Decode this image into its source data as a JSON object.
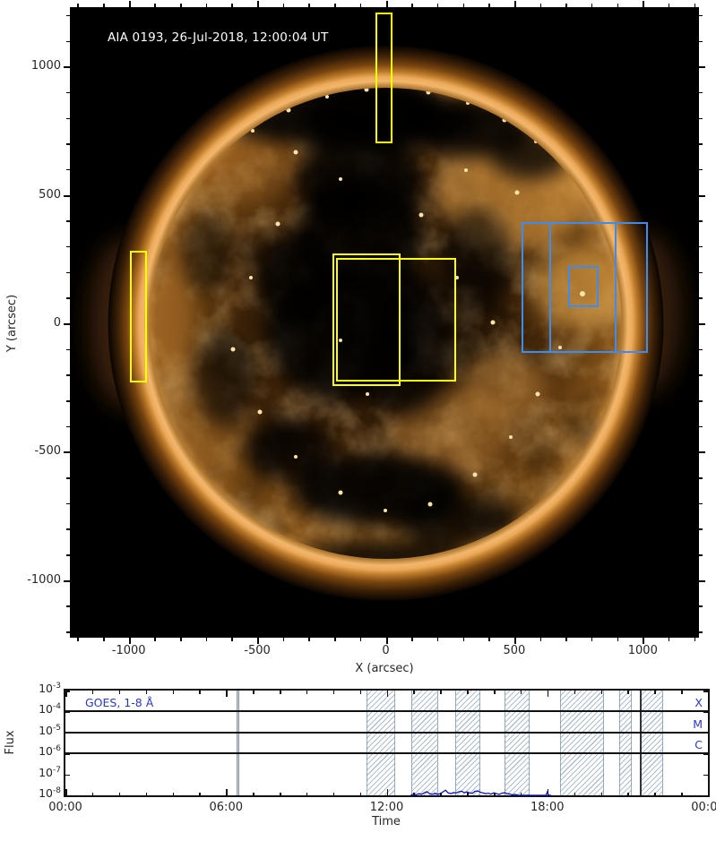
{
  "main_plot": {
    "title": "AIA 0193, 26-Jul-2018, 12:00:04 UT",
    "xlabel": "X (arcsec)",
    "ylabel": "Y (arcsec)",
    "x_tick_labels": [
      "-1000",
      "-500",
      "0",
      "500",
      "1000"
    ],
    "x_tick_values": [
      -1000,
      -500,
      0,
      500,
      1000
    ],
    "y_tick_labels": [
      "1000",
      "500",
      "0",
      "-500",
      "-1000"
    ],
    "y_tick_values": [
      1000,
      500,
      0,
      -500,
      -1000
    ],
    "box_colors": {
      "yellow": "#ffff00",
      "blue": "#3f8cf0"
    }
  },
  "goes_plot": {
    "legend": "GOES, 1-8 Å",
    "xlabel": "Time",
    "ylabel": "Flux",
    "x_tick_labels": [
      "00:00",
      "06:00",
      "12:00",
      "18:00",
      "00:00"
    ],
    "x_tick_hours": [
      0,
      6,
      12,
      18,
      24
    ],
    "y_tick_exponents": [
      -3,
      -4,
      -5,
      -6,
      -7,
      -8
    ],
    "accent_color": "#2a35d8",
    "trace_color": "#0000c8"
  },
  "chart_data": [
    {
      "type": "heatmap",
      "title": "AIA 0193, 26-Jul-2018, 12:00:04 UT",
      "xlabel": "X (arcsec)",
      "ylabel": "Y (arcsec)",
      "xlim": [
        -1230,
        1222
      ],
      "ylim": [
        -1228,
        1231
      ],
      "description": "SDO/AIA 193 A full-disk solar image; dark coronal holes across the north pole, disk centre and south; bright coronal loop complex in the north-west quadrant; bright limb ring",
      "overlay_boxes": [
        {
          "color": "yellow",
          "x": [
            -40,
            25
          ],
          "y": [
            700,
            1210
          ]
        },
        {
          "color": "yellow",
          "x": [
            -995,
            -930
          ],
          "y": [
            -230,
            282
          ]
        },
        {
          "color": "yellow",
          "x": [
            -207,
            59
          ],
          "y": [
            -243,
            273
          ]
        },
        {
          "color": "yellow",
          "x": [
            -193,
            275
          ],
          "y": [
            -226,
            253
          ]
        },
        {
          "color": "blue",
          "x": [
            529,
            898
          ],
          "y": [
            -116,
            393
          ]
        },
        {
          "color": "blue",
          "x": [
            637,
            1020
          ],
          "y": [
            -116,
            393
          ]
        },
        {
          "color": "blue",
          "x": [
            710,
            828
          ],
          "y": [
            64,
            222
          ]
        }
      ]
    },
    {
      "type": "line",
      "title": "GOES, 1-8 Å",
      "xlabel": "Time",
      "ylabel": "Flux",
      "x_range_hours": [
        0,
        24
      ],
      "ylog_range": [
        -8,
        -3
      ],
      "grid": false,
      "legend_position": "top-left",
      "threshold_lines": [
        {
          "label": "X",
          "flux": 0.0001
        },
        {
          "label": "M",
          "flux": 1e-05
        },
        {
          "label": "C",
          "flux": 1e-06
        }
      ],
      "hatched_intervals_hours": [
        [
          11.25,
          12.33
        ],
        [
          12.92,
          13.92
        ],
        [
          14.55,
          15.5
        ],
        [
          16.4,
          17.33
        ],
        [
          18.47,
          20.13
        ],
        [
          20.67,
          21.17
        ],
        [
          21.5,
          22.33
        ]
      ],
      "vertical_lines_hours": [
        {
          "hour": 6.42,
          "style": "grey"
        },
        {
          "hour": 21.5,
          "style": "dark"
        }
      ],
      "series": [
        {
          "name": "GOES 1-8 Å X-ray flux",
          "x_hours": [
            12.9,
            13.0,
            13.1,
            13.2,
            13.3,
            13.4,
            13.5,
            13.6,
            13.7,
            13.8,
            13.9,
            14.0,
            14.1,
            14.2,
            14.3,
            14.4,
            14.5,
            14.6,
            14.7,
            14.8,
            14.9,
            15.0,
            15.1,
            15.2,
            15.3,
            15.4,
            15.5,
            15.6,
            15.7,
            15.8,
            15.9,
            16.0,
            16.1,
            16.2,
            16.3,
            16.4,
            16.5,
            16.6,
            16.7,
            16.8,
            16.9,
            17.0,
            17.8,
            17.95,
            18.0,
            18.05,
            18.15
          ],
          "flux": [
            1e-08,
            1.15e-08,
            1.05e-08,
            1.2e-08,
            1.1e-08,
            1.3e-08,
            1.5e-08,
            1.2e-08,
            1.1e-08,
            1.25e-08,
            1.1e-08,
            1.2e-08,
            1.45e-08,
            1.75e-08,
            1.3e-08,
            1.2e-08,
            1.35e-08,
            1.3e-08,
            1.5e-08,
            1.55e-08,
            1.35e-08,
            1.45e-08,
            1.3e-08,
            1.25e-08,
            1.55e-08,
            1.6e-08,
            1.4e-08,
            1.3e-08,
            1.2e-08,
            1.25e-08,
            1.15e-08,
            1.3e-08,
            1.2e-08,
            1.1e-08,
            1.25e-08,
            1.35e-08,
            1.2e-08,
            1.15e-08,
            1.05e-08,
            1.1e-08,
            1e-08,
            1e-08,
            1e-08,
            1e-08,
            1.45e-08,
            1e-08,
            1e-08
          ]
        }
      ]
    }
  ]
}
